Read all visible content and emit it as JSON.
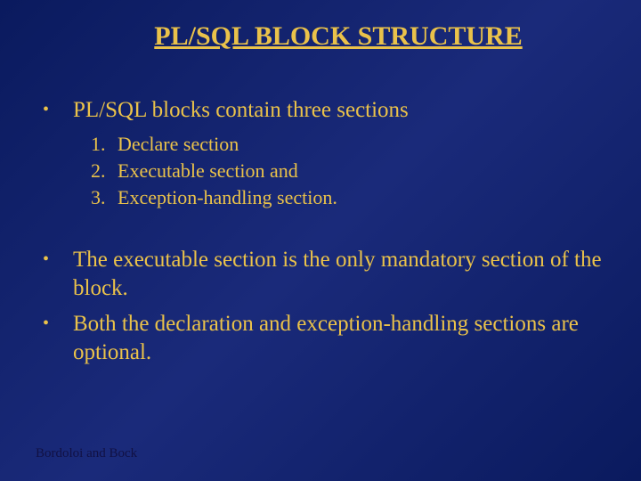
{
  "colors": {
    "title_color": "#eac24a",
    "body_color": "#eac24a",
    "footer_color": "#111144"
  },
  "title": "PL/SQL BLOCK STRUCTURE",
  "bullets": [
    {
      "text": "PL/SQL blocks contain three sections",
      "sub": [
        "Declare section",
        "Executable section and",
        "Exception-handling section."
      ]
    },
    {
      "text": "The executable section is the only mandatory section of the block."
    },
    {
      "text": "Both the declaration and exception-handling sections are optional."
    }
  ],
  "footer": "Bordoloi and Bock"
}
